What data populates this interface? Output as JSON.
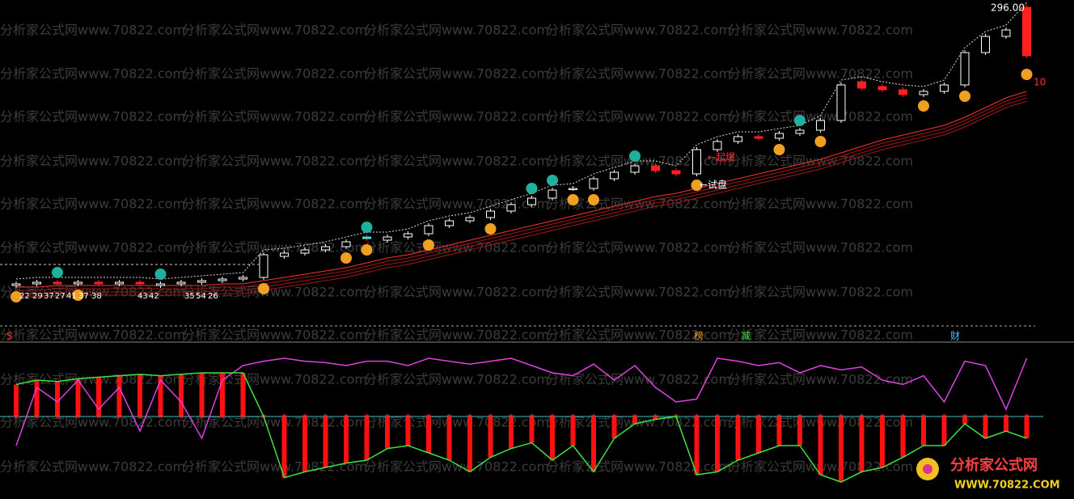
{
  "chart_data": [
    {
      "type": "candlestick",
      "watermark": "分析家公式网www.70822.com",
      "annotations": [
        "296.00",
        "10",
        "←起爆",
        "←试盘",
        "22",
        "29",
        "37",
        "27",
        "41",
        "37",
        "38",
        "43",
        "42",
        "35",
        "54",
        "26"
      ],
      "signals": [
        "S",
        "榜",
        "减",
        "财"
      ],
      "ylim": [
        100,
        300
      ],
      "open": [
        126,
        127,
        128,
        127,
        128,
        127,
        128,
        126,
        127,
        128,
        129,
        130,
        131,
        144,
        146,
        148,
        150,
        156,
        154,
        156,
        158,
        163,
        166,
        168,
        172,
        176,
        180,
        186,
        186,
        192,
        196,
        200,
        197,
        195,
        210,
        215,
        218,
        217,
        220,
        222,
        228,
        252,
        249,
        247,
        244,
        246,
        250,
        270,
        280,
        298
      ],
      "close": [
        127,
        128,
        127,
        128,
        127,
        128,
        127,
        127,
        128,
        129,
        130,
        131,
        145,
        146,
        148,
        150,
        153,
        155,
        156,
        158,
        163,
        166,
        168,
        172,
        176,
        180,
        185,
        186,
        192,
        196,
        200,
        197,
        195,
        210,
        215,
        218,
        217,
        220,
        222,
        228,
        250,
        248,
        247,
        244,
        246,
        250,
        270,
        280,
        284,
        268
      ],
      "ma": [
        125,
        125,
        126,
        126,
        126,
        126,
        126,
        126,
        126,
        126,
        127,
        127,
        129,
        131,
        133,
        135,
        137,
        140,
        143,
        145,
        148,
        151,
        154,
        157,
        160,
        163,
        166,
        169,
        172,
        175,
        178,
        181,
        183,
        186,
        189,
        192,
        195,
        198,
        201,
        204,
        208,
        212,
        216,
        219,
        222,
        225,
        230,
        236,
        242,
        246
      ]
    },
    {
      "type": "indicator",
      "ylim": [
        0,
        100
      ],
      "baseline": 50,
      "series": [
        {
          "color": "#e040e0",
          "values": [
            30,
            70,
            60,
            75,
            55,
            70,
            40,
            75,
            60,
            35,
            75,
            85,
            88,
            90,
            88,
            87,
            85,
            88,
            88,
            85,
            90,
            88,
            86,
            88,
            90,
            85,
            80,
            78,
            86,
            75,
            85,
            70,
            60,
            62,
            90,
            88,
            85,
            87,
            80,
            85,
            82,
            84,
            75,
            72,
            78,
            60,
            88,
            85,
            55,
            90
          ]
        },
        {
          "color": "#40e040",
          "values": [
            72,
            75,
            74,
            76,
            77,
            78,
            79,
            78,
            79,
            80,
            80,
            80,
            50,
            8,
            12,
            15,
            18,
            20,
            28,
            30,
            25,
            20,
            12,
            22,
            28,
            32,
            20,
            30,
            12,
            35,
            45,
            48,
            50,
            10,
            12,
            20,
            25,
            30,
            30,
            10,
            5,
            12,
            15,
            22,
            30,
            30,
            45,
            35,
            40,
            35
          ]
        }
      ],
      "bar_color": "#ff1010",
      "logo": [
        "分析家公式网",
        "WWW.70822.COM"
      ]
    }
  ]
}
